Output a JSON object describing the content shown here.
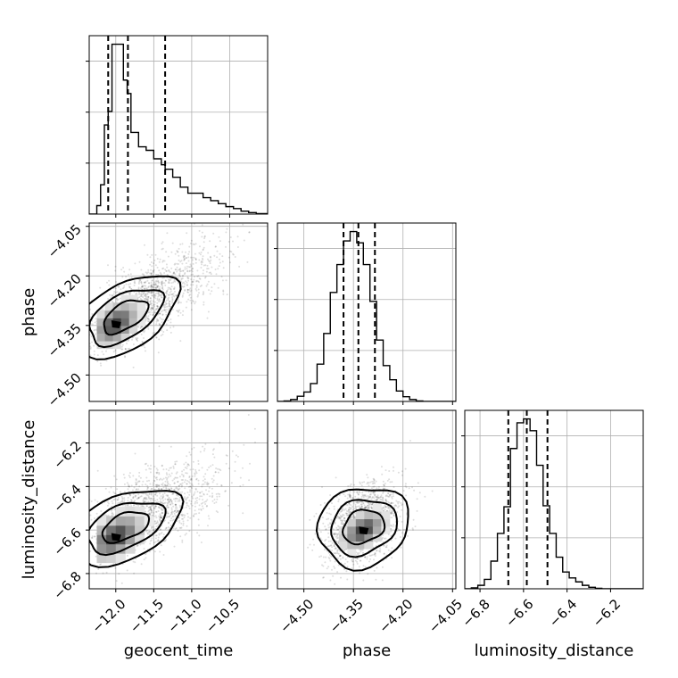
{
  "chart_data": {
    "type": "corner",
    "parameters": [
      "geocent_time",
      "phase",
      "luminosity_distance"
    ],
    "labels": {
      "geocent_time": "geocent_time",
      "phase": "phase",
      "luminosity_distance": "luminosity_distance"
    },
    "ranges": {
      "geocent_time": [
        -12.35,
        -10.0
      ],
      "phase": [
        -4.58,
        -4.04
      ],
      "luminosity_distance": [
        -6.87,
        -6.05
      ]
    },
    "ticks": {
      "geocent_time": [
        -12.0,
        -11.5,
        -11.0,
        -10.5
      ],
      "phase": [
        -4.5,
        -4.35,
        -4.2,
        -4.05
      ],
      "luminosity_distance": [
        -6.8,
        -6.6,
        -6.4,
        -6.2
      ]
    },
    "tick_labels": {
      "geocent_time": [
        "−12.0",
        "−11.5",
        "−11.0",
        "−10.5"
      ],
      "phase": [
        "−4.50",
        "−4.35",
        "−4.20",
        "−4.05"
      ],
      "luminosity_distance": [
        "−6.8",
        "−6.6",
        "−6.4",
        "−6.2"
      ]
    },
    "quantiles": {
      "geocent_time": [
        -12.1,
        -11.84,
        -11.35
      ],
      "phase": [
        -4.38,
        -4.335,
        -4.285
      ],
      "luminosity_distance": [
        -6.67,
        -6.585,
        -6.49
      ]
    },
    "histograms": {
      "geocent_time": {
        "edges": [
          -12.35,
          -12.25,
          -12.2,
          -12.15,
          -12.1,
          -12.05,
          -12.0,
          -11.9,
          -11.85,
          -11.8,
          -11.7,
          -11.6,
          -11.5,
          -11.4,
          -11.35,
          -11.25,
          -11.15,
          -11.05,
          -10.95,
          -10.85,
          -10.75,
          -10.65,
          -10.55,
          -10.45,
          -10.35,
          -10.25,
          -10.15,
          -10.0
        ],
        "counts": [
          1,
          170,
          590,
          1790,
          2060,
          3410,
          3410,
          2690,
          2420,
          1640,
          1350,
          1280,
          1110,
          990,
          900,
          740,
          540,
          420,
          420,
          330,
          270,
          210,
          150,
          110,
          60,
          30,
          10
        ]
      },
      "phase": {
        "edges": [
          -4.58,
          -4.56,
          -4.54,
          -4.52,
          -4.5,
          -4.48,
          -4.46,
          -4.44,
          -4.42,
          -4.4,
          -4.38,
          -4.36,
          -4.34,
          -4.32,
          -4.3,
          -4.28,
          -4.26,
          -4.24,
          -4.22,
          -4.2,
          -4.18,
          -4.16,
          -4.14,
          -4.12,
          -4.1,
          -4.08,
          -4.06,
          -4.04
        ],
        "counts": [
          0,
          5,
          20,
          55,
          100,
          190,
          395,
          720,
          1155,
          1450,
          1700,
          1800,
          1680,
          1450,
          1060,
          650,
          380,
          230,
          110,
          50,
          20,
          5,
          0,
          0,
          0,
          0,
          0
        ]
      },
      "luminosity_distance": {
        "edges": [
          -6.87,
          -6.84,
          -6.81,
          -6.78,
          -6.75,
          -6.72,
          -6.69,
          -6.66,
          -6.63,
          -6.6,
          -6.57,
          -6.54,
          -6.51,
          -6.48,
          -6.45,
          -6.42,
          -6.39,
          -6.36,
          -6.33,
          -6.3,
          -6.27,
          -6.24,
          -6.21,
          -6.18,
          -6.15,
          -6.12,
          -6.09,
          -6.05
        ],
        "counts": [
          0,
          10,
          35,
          95,
          280,
          560,
          830,
          1420,
          1680,
          1720,
          1600,
          1250,
          840,
          560,
          320,
          170,
          110,
          70,
          35,
          15,
          5,
          0,
          0,
          0,
          0,
          0,
          0
        ]
      }
    },
    "pairs": [
      {
        "x": "geocent_time",
        "y": "phase",
        "mean": [
          -11.75,
          -4.3
        ],
        "std": [
          0.45,
          0.085
        ],
        "corr": 0.75,
        "peak": [
          -12.0,
          -4.345
        ],
        "bins": {
          "x": [
            -12.25,
            -11.4
          ],
          "y": [
            -4.42,
            -4.235
          ],
          "nx": 8,
          "ny": 8
        }
      },
      {
        "x": "geocent_time",
        "y": "luminosity_distance",
        "mean": [
          -11.75,
          -6.54
        ],
        "std": [
          0.45,
          0.115
        ],
        "corr": 0.6,
        "peak": [
          -12.0,
          -6.63
        ],
        "bins": {
          "x": [
            -12.25,
            -11.25
          ],
          "y": [
            -6.75,
            -6.45
          ],
          "nx": 8,
          "ny": 7
        }
      },
      {
        "x": "phase",
        "y": "luminosity_distance",
        "mean": [
          -4.32,
          -6.57
        ],
        "std": [
          0.055,
          0.095
        ],
        "corr": 0.35,
        "peak": [
          -4.32,
          -6.6
        ],
        "bins": {
          "x": [
            -4.42,
            -4.24
          ],
          "y": [
            -6.72,
            -6.48
          ],
          "nx": 7,
          "ny": 7
        }
      }
    ],
    "grid": true,
    "colors": {
      "line": "#000000",
      "grid": "#b0b0b0",
      "points": "#000000"
    }
  }
}
